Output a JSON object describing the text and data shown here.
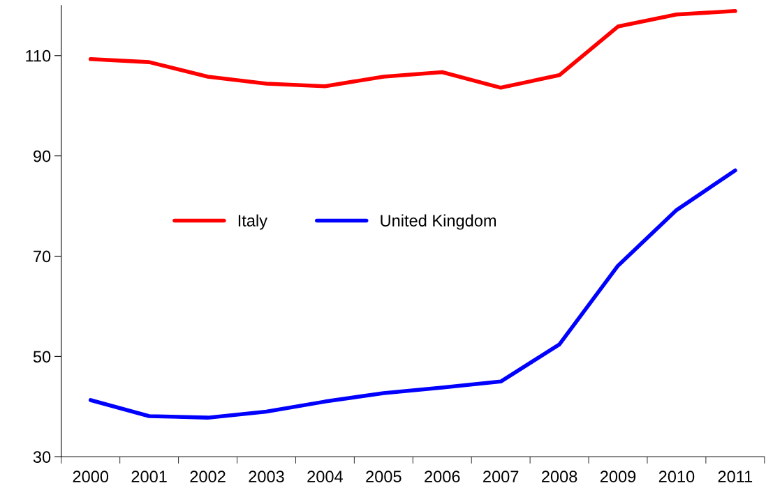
{
  "chart_data": {
    "type": "line",
    "categories": [
      "2000",
      "2001",
      "2002",
      "2003",
      "2004",
      "2005",
      "2006",
      "2007",
      "2008",
      "2009",
      "2010",
      "2011"
    ],
    "series": [
      {
        "name": "Italy",
        "color": "#ff0000",
        "values": [
          109.3,
          108.7,
          105.8,
          104.4,
          103.9,
          105.8,
          106.7,
          103.6,
          106.1,
          115.8,
          118.2,
          118.9
        ]
      },
      {
        "name": "United Kingdom",
        "color": "#0000ff",
        "values": [
          41.3,
          38.1,
          37.8,
          39.0,
          41.0,
          42.7,
          43.8,
          45.0,
          52.4,
          68.1,
          79.2,
          87.1
        ]
      }
    ],
    "ylim": [
      30,
      120
    ],
    "yticks": [
      30,
      50,
      70,
      90,
      110
    ],
    "grid": false,
    "legend": "center left",
    "marker": "none",
    "line_style": "solid"
  }
}
